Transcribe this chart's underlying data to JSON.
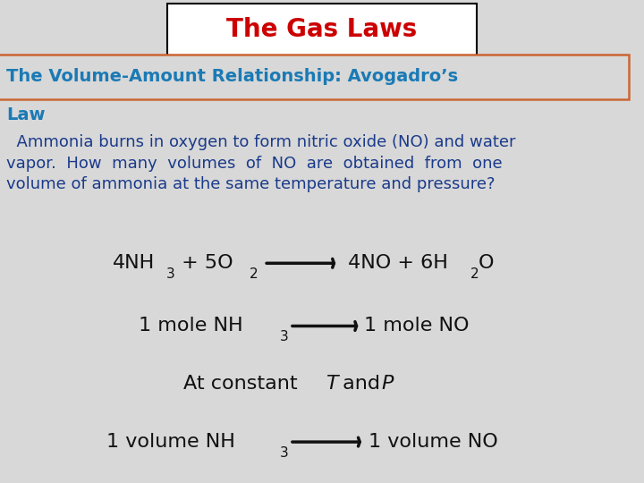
{
  "bg_color": "#d8d8d8",
  "title_text": "The Gas Laws",
  "title_color": "#cc0000",
  "title_box_color": "#000000",
  "title_bg": "#ffffff",
  "subtitle_color": "#1a7ab5",
  "subtitle_box_color": "#cc6633",
  "body_color": "#1a3a8a",
  "dark_color": "#111111",
  "subtitle_line1": "The Volume-Amount Relationship: Avogadro’s",
  "subtitle_line2": "Law",
  "body_line1": "  Ammonia burns in oxygen to form nitric oxide (NO) and water",
  "body_line2": "vapor.  How  many  volumes  of  NO  are  obtained  from  one",
  "body_line3": "volume of ammonia at the same temperature and pressure?"
}
